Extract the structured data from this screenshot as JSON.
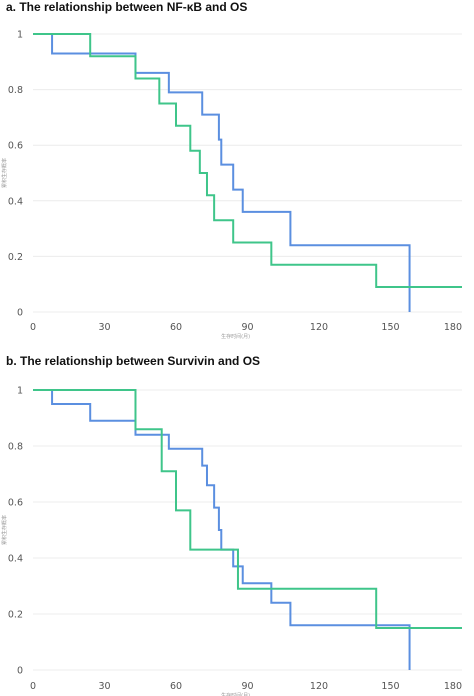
{
  "colors": {
    "blue": "#5b8fe0",
    "green": "#3fc58a",
    "grid": "#ececec",
    "tick": "#555555"
  },
  "chart_data": [
    {
      "type": "line",
      "step": true,
      "title": "a. The relationship between NF-κB and OS",
      "xlabel": "生存时间(月)",
      "ylabel": "累积生存概率",
      "xlim": [
        0,
        180
      ],
      "ylim": [
        0,
        1
      ],
      "xticks": [
        0,
        30,
        60,
        90,
        120,
        150,
        180
      ],
      "yticks": [
        0,
        0.2,
        0.4,
        0.6,
        0.8,
        1
      ],
      "ytick_labels": [
        "0",
        "0.2",
        "0.4",
        "0.6",
        "0.8",
        "1"
      ],
      "xtick_labels": [
        "0",
        "30",
        "60",
        "90",
        "120",
        "150",
        "180"
      ],
      "grid": true,
      "series": [
        {
          "color": "blue",
          "x": [
            0,
            8,
            43,
            57,
            71,
            78,
            79,
            84,
            88,
            108,
            158,
            158
          ],
          "y": [
            1,
            0.93,
            0.86,
            0.79,
            0.71,
            0.62,
            0.53,
            0.44,
            0.36,
            0.24,
            0.24,
            0
          ]
        },
        {
          "color": "green",
          "x": [
            0,
            24,
            43,
            53,
            60,
            66,
            70,
            73,
            76,
            84,
            100,
            144,
            180
          ],
          "y": [
            1,
            0.92,
            0.84,
            0.75,
            0.67,
            0.58,
            0.5,
            0.42,
            0.33,
            0.25,
            0.17,
            0.09,
            0.09
          ]
        }
      ]
    },
    {
      "type": "line",
      "step": true,
      "title": "b. The relationship between Survivin and OS",
      "xlabel": "生存时间(月)",
      "ylabel": "累积生存概率",
      "xlim": [
        0,
        180
      ],
      "ylim": [
        0,
        1
      ],
      "xticks": [
        0,
        30,
        60,
        90,
        120,
        150,
        180
      ],
      "yticks": [
        0,
        0.2,
        0.4,
        0.6,
        0.8,
        1
      ],
      "ytick_labels": [
        "0",
        "0.2",
        "0.4",
        "0.6",
        "0.8",
        "1"
      ],
      "xtick_labels": [
        "0",
        "30",
        "60",
        "90",
        "120",
        "150",
        "180"
      ],
      "grid": true,
      "series": [
        {
          "color": "blue",
          "x": [
            0,
            8,
            24,
            43,
            57,
            71,
            73,
            76,
            78,
            79,
            84,
            88,
            100,
            108,
            158,
            158
          ],
          "y": [
            1,
            0.95,
            0.89,
            0.84,
            0.79,
            0.73,
            0.66,
            0.58,
            0.5,
            0.43,
            0.37,
            0.31,
            0.24,
            0.16,
            0.16,
            0
          ]
        },
        {
          "color": "green",
          "x": [
            0,
            43,
            54,
            60,
            66,
            86,
            144,
            180
          ],
          "y": [
            1,
            0.86,
            0.71,
            0.57,
            0.43,
            0.29,
            0.15,
            0.15
          ]
        }
      ]
    }
  ]
}
